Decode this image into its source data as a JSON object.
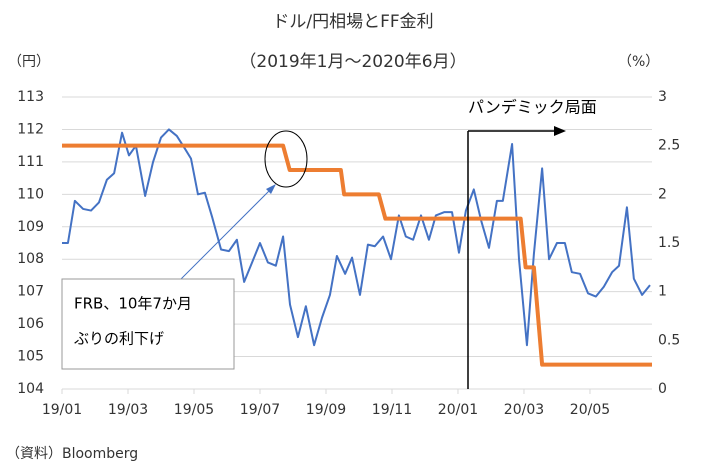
{
  "chart_data": {
    "type": "line",
    "title": "ドル/円相場とFF金利",
    "subtitle": "（2019年1月～2020年6月）",
    "y_label": "（円）",
    "y2_label": "（%）",
    "source": "（資料）Bloomberg",
    "annotations": {
      "pandemic": "パンデミック局面",
      "frb": [
        "FRB、10年7か月",
        "ぶりの利下げ"
      ]
    },
    "xlim": [
      0,
      17.88
    ],
    "xticks": [
      {
        "value": 0,
        "label": "19/01"
      },
      {
        "value": 2,
        "label": "19/03"
      },
      {
        "value": 4,
        "label": "19/05"
      },
      {
        "value": 6,
        "label": "19/07"
      },
      {
        "value": 8,
        "label": "19/09"
      },
      {
        "value": 10,
        "label": "19/11"
      },
      {
        "value": 12,
        "label": "20/01"
      },
      {
        "value": 14,
        "label": "20/03"
      },
      {
        "value": 16,
        "label": "20/05"
      }
    ],
    "ylim": [
      104,
      113
    ],
    "yticks": [
      104,
      105,
      106,
      107,
      108,
      109,
      110,
      111,
      112,
      113
    ],
    "y2lim": [
      0,
      3
    ],
    "y2ticks": [
      0,
      0.5,
      1,
      1.5,
      2,
      2.5,
      3
    ],
    "grid": true,
    "series": [
      {
        "name": "ドル/円",
        "color": "#4472c4",
        "x": [
          0,
          0.18,
          0.39,
          0.64,
          0.88,
          1.12,
          1.36,
          1.58,
          1.82,
          2.03,
          2.24,
          2.52,
          2.76,
          3.0,
          3.24,
          3.48,
          3.73,
          3.91,
          4.12,
          4.33,
          4.55,
          4.82,
          5.06,
          5.3,
          5.52,
          5.76,
          6.0,
          6.24,
          6.48,
          6.7,
          6.91,
          7.15,
          7.39,
          7.64,
          7.88,
          8.12,
          8.33,
          8.58,
          8.79,
          9.03,
          9.27,
          9.48,
          9.73,
          9.97,
          10.21,
          10.42,
          10.64,
          10.88,
          11.12,
          11.33,
          11.58,
          11.82,
          12.03,
          12.24,
          12.48,
          12.7,
          12.94,
          13.18,
          13.36,
          13.64,
          13.85,
          14.09,
          14.3,
          14.55,
          14.76,
          15.0,
          15.24,
          15.45,
          15.7,
          15.94,
          16.18,
          16.42,
          16.67,
          16.88,
          17.12,
          17.33,
          17.58,
          17.82
        ],
        "values": [
          108.5,
          108.5,
          109.8,
          109.55,
          109.5,
          109.75,
          110.45,
          110.65,
          111.9,
          111.2,
          111.5,
          109.95,
          111.0,
          111.75,
          112.0,
          111.8,
          111.4,
          111.1,
          110.0,
          110.05,
          109.3,
          108.3,
          108.25,
          108.6,
          107.3,
          107.9,
          108.5,
          107.9,
          107.8,
          108.7,
          106.6,
          105.6,
          106.55,
          105.35,
          106.2,
          106.9,
          108.1,
          107.55,
          108.05,
          106.9,
          108.45,
          108.4,
          108.7,
          108.0,
          109.35,
          108.7,
          108.6,
          109.35,
          108.6,
          109.35,
          109.45,
          109.45,
          108.2,
          109.5,
          110.15,
          109.2,
          108.35,
          109.8,
          109.8,
          111.55,
          108.0,
          105.35,
          108.15,
          110.8,
          108.0,
          108.5,
          108.5,
          107.6,
          107.55,
          106.95,
          106.85,
          107.15,
          107.6,
          107.8,
          109.6,
          107.4,
          106.9,
          107.2
        ]
      },
      {
        "name": "FF金利",
        "color": "#ed7d31",
        "axis": "y2",
        "x": [
          0,
          6.7,
          6.9,
          8.45,
          8.55,
          9.6,
          9.8,
          13.9,
          14.05,
          14.3,
          14.55,
          17.88
        ],
        "values": [
          2.5,
          2.5,
          2.25,
          2.25,
          2.0,
          2.0,
          1.75,
          1.75,
          1.25,
          1.25,
          0.25,
          0.25
        ]
      }
    ]
  }
}
